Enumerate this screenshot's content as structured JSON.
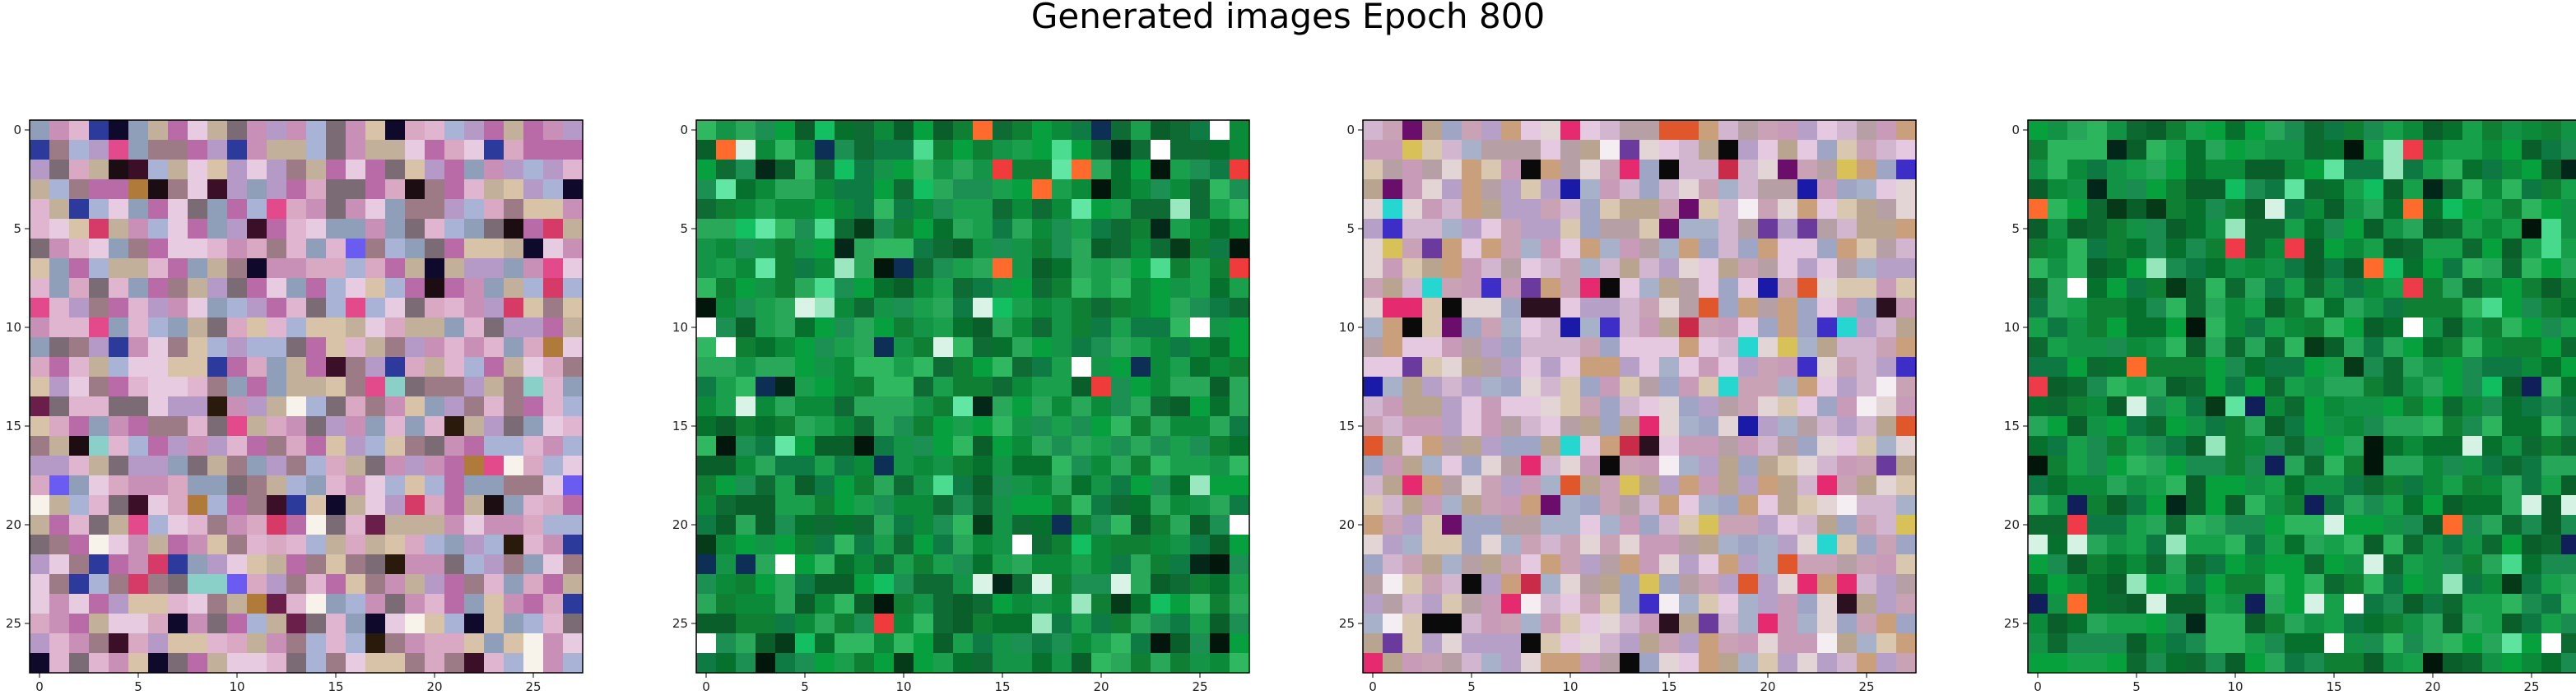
{
  "title": "Generated images Epoch 800",
  "panels": [
    {
      "xticks": [
        "0",
        "5",
        "10",
        "15",
        "20",
        "25"
      ],
      "yticks": [
        "0",
        "5",
        "10",
        "15",
        "20",
        "25"
      ],
      "palette": [
        "#c88fb7",
        "#b59ac8",
        "#d9a9c4",
        "#8f9fba",
        "#c2b09a",
        "#e7cbe0",
        "#9c7a86",
        "#b96ba8",
        "#7a6b75",
        "#d8c2a8",
        "#e0b5d0",
        "#a8b3d6"
      ],
      "accents": [
        "#1c0d12",
        "#3b0f28",
        "#0f0a2c",
        "#6a1f4a",
        "#2a1a0c",
        "#f7f2ea",
        "#e24a8b",
        "#6a5cf0",
        "#2c3a9c",
        "#b07b3a",
        "#8ad0c9",
        "#d63a66"
      ],
      "seed": 11
    },
    {
      "xticks": [
        "0",
        "5",
        "10",
        "15",
        "20",
        "25"
      ],
      "yticks": [
        "0",
        "5",
        "10",
        "15",
        "20",
        "25"
      ],
      "palette": [
        "#0b8a3a",
        "#1aa04c",
        "#06702d",
        "#0f7f34",
        "#2fb860",
        "#0a5e2a",
        "#149446",
        "#0d6b33",
        "#1c8f52",
        "#29a85a",
        "#07a03e",
        "#0e7a44"
      ],
      "accents": [
        "#02160c",
        "#053b18",
        "#9be8c0",
        "#ff6a2d",
        "#f03b3b",
        "#ffffff",
        "#0e2f55",
        "#62e6a3",
        "#d9f3e6",
        "#12c061",
        "#03281a",
        "#4bdc8f"
      ],
      "seed": 23
    },
    {
      "xticks": [
        "0",
        "5",
        "10",
        "15",
        "20",
        "25"
      ],
      "yticks": [
        "0",
        "5",
        "10",
        "15",
        "20",
        "25"
      ],
      "palette": [
        "#c9a3b5",
        "#b6a0c8",
        "#d9c7b0",
        "#a7b1c9",
        "#c89bb9",
        "#e3d4d6",
        "#b8a48f",
        "#d2b6cf",
        "#9fa5c4",
        "#caa07c",
        "#e5c9e0",
        "#b79fa6"
      ],
      "accents": [
        "#0a0a0a",
        "#2b1020",
        "#1a1aa8",
        "#6b0e6b",
        "#e52a6f",
        "#f4eef2",
        "#d9c15a",
        "#3e2ec8",
        "#6a3b9c",
        "#e0572b",
        "#26d6d0",
        "#c92b49"
      ],
      "seed": 37
    },
    {
      "xticks": [
        "0",
        "5",
        "10",
        "15",
        "20",
        "25"
      ],
      "yticks": [
        "0",
        "5",
        "10",
        "15",
        "20",
        "25"
      ],
      "palette": [
        "#0b8a3a",
        "#17a04a",
        "#06702d",
        "#0f7f34",
        "#2cb55c",
        "#0a5e2a",
        "#129244",
        "#0c6a31",
        "#1b8c4f",
        "#25a658",
        "#06a03d",
        "#0d7841"
      ],
      "accents": [
        "#02150b",
        "#063917",
        "#96e6bc",
        "#ff6b2c",
        "#ef3a4a",
        "#ffffff",
        "#101f5a",
        "#5fe4a0",
        "#d6f2e4",
        "#10be60",
        "#02261a",
        "#48da8c"
      ],
      "seed": 51
    }
  ]
}
